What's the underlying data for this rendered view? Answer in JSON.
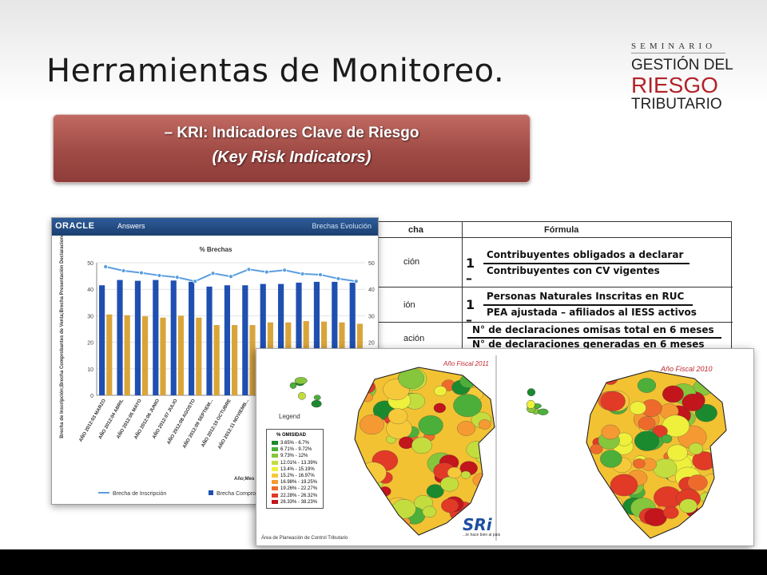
{
  "slide": {
    "title": "Herramientas de Monitoreo."
  },
  "logo": {
    "top": "SEMINARIO",
    "line1": "GESTIÓN DEL",
    "line2": "RIESGO",
    "line3": "TRIBUTARIO"
  },
  "kri": {
    "line1": "– KRI: Indicadores Clave de Riesgo",
    "line2": "(Key Risk Indicators)"
  },
  "formula_table": {
    "col1_header": "cha",
    "col2_header": "Fórmula",
    "rows": [
      {
        "label": "ción",
        "one": "1 –",
        "numerator": "Contribuyentes obligados a declarar",
        "denominator": "Contribuyentes con CV vigentes"
      },
      {
        "label": "ión",
        "one": "1 –",
        "numerator": "Personas Naturales Inscritas en RUC",
        "denominator": "PEA ajustada – afiliados al IESS activos"
      },
      {
        "label": "ación",
        "one": "",
        "numerator": "N° de declaraciones omisas total en 6 meses",
        "denominator": "N° de declaraciones generadas en 6 meses"
      }
    ]
  },
  "oracle": {
    "brand": "ORACLE",
    "product": "Answers",
    "view_name": "Brechas Evolución",
    "chart_title": "% Brechas",
    "y_axis_label": "Brecha de Inscripción;Brecha Comprobantes de Venta;Brecha Presentación Declaraciones",
    "x_axis_caption": "Año;Mes",
    "legend": [
      "Brecha de Inscripción",
      "Brecha Comprobant"
    ]
  },
  "chart_data": {
    "type": "bar",
    "title": "% Brechas",
    "categories": [
      "AÑO 2012:03 MARZO",
      "AÑO 2012:04 ABRIL",
      "AÑO 2012:05 MAYO",
      "AÑO 2012:06 JUNIO",
      "AÑO 2012:07 JULIO",
      "AÑO 2012:08 AGOSTO",
      "AÑO 2012:09 SEPTIEM...",
      "AÑO 2012:10 OCTUBRE",
      "AÑO 2012:11 NOVIEMB...",
      "",
      "",
      "",
      "",
      "",
      ""
    ],
    "series": [
      {
        "name": "Brecha Comprobant",
        "values": [
          41.5,
          43.5,
          43.2,
          43.5,
          43.3,
          42.8,
          41.0,
          41.5,
          41.5,
          42.0,
          42.0,
          42.5,
          42.8,
          42.8,
          42.5
        ],
        "color": "#1f4fb0"
      },
      {
        "name": "",
        "values": [
          30.5,
          30.2,
          29.8,
          29.3,
          30.0,
          29.3,
          26.5,
          26.5,
          26.5,
          27.5,
          27.5,
          28.0,
          27.8,
          27.5,
          27.0
        ],
        "color": "#d9a53a"
      },
      {
        "name": "Brecha de Inscripción",
        "type": "line",
        "values": [
          48.5,
          47.0,
          46.2,
          45.2,
          44.5,
          43.0,
          46.0,
          44.8,
          47.5,
          46.5,
          47.2,
          45.8,
          45.5,
          44.0,
          43.0
        ],
        "color": "#5a9ee0"
      }
    ],
    "ylim": [
      0,
      50
    ],
    "yticks": [
      0,
      10,
      20,
      30,
      40,
      50
    ],
    "y2ticks": [
      20,
      30,
      40,
      50
    ],
    "xlabel": "Año;Mes",
    "ylabel": "Brecha de Inscripción;Brecha Comprobantes de Venta;Brecha Presentación Declaraciones"
  },
  "map": {
    "year_left": "Año Fiscal 2011",
    "year_right": "Año Fiscal 2010",
    "legend_title": "Legend",
    "legend_heading": "% OMISIDAD",
    "legend_items": [
      {
        "label": "3.65% - 6.7%",
        "color": "#1b8a2e"
      },
      {
        "label": "6.71% - 9.72%",
        "color": "#4caf3a"
      },
      {
        "label": "9.73% - 12%",
        "color": "#86c63c"
      },
      {
        "label": "12.01% - 13.39%",
        "color": "#c4dd3e"
      },
      {
        "label": "13.4% - 15.19%",
        "color": "#eef03c"
      },
      {
        "label": "15.2% - 16.97%",
        "color": "#f6c93a"
      },
      {
        "label": "16.98% - 19.25%",
        "color": "#f59a32"
      },
      {
        "label": "19.26% - 22.27%",
        "color": "#ee6a2c"
      },
      {
        "label": "22.28% - 26.32%",
        "color": "#e13a26"
      },
      {
        "label": "26.33% - 38.23%",
        "color": "#c2151c"
      }
    ],
    "sri_logo": "SRi",
    "sri_sub": "...le hace bien al país",
    "footer": "Área de Planeación de Control Tributario"
  }
}
